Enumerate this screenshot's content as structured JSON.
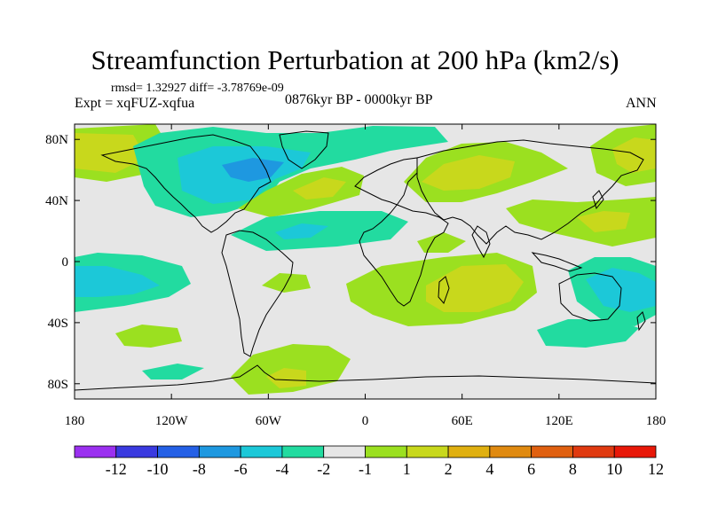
{
  "title": "Streamfunction Perturbation at 200 hPa (km2/s)",
  "stats": "rmsd= 1.32927 diff= -3.78769e-09",
  "experiment": "Expt = xqFUZ-xqfua",
  "period": "0876kyr BP - 0000kyr BP",
  "season": "ANN",
  "map": {
    "projection": "cylindrical-equidistant",
    "lon_range": [
      -180,
      180
    ],
    "lat_range": [
      -90,
      90
    ],
    "x_ticks": [
      {
        "lon": -180,
        "label": "180"
      },
      {
        "lon": -120,
        "label": "120W"
      },
      {
        "lon": -60,
        "label": "60W"
      },
      {
        "lon": 0,
        "label": "0"
      },
      {
        "lon": 60,
        "label": "60E"
      },
      {
        "lon": 120,
        "label": "120E"
      },
      {
        "lon": 180,
        "label": "180"
      }
    ],
    "y_ticks": [
      {
        "lat": 80,
        "label": "80N"
      },
      {
        "lat": 40,
        "label": "40N"
      },
      {
        "lat": 0,
        "label": "0"
      },
      {
        "lat": -40,
        "label": "40S"
      },
      {
        "lat": -80,
        "label": "80S"
      }
    ],
    "background_color": "#e6e6e6",
    "coastline_color": "#000000"
  },
  "colorbar": {
    "colors": [
      "#9b30f0",
      "#3a3ae0",
      "#2460e6",
      "#1e98e0",
      "#1cc8d8",
      "#22dba0",
      "#e6e6e6",
      "#9be020",
      "#c8d81c",
      "#e0b010",
      "#e08a10",
      "#e06010",
      "#e03a10",
      "#e81808"
    ],
    "labels": [
      "-12",
      "-10",
      "-8",
      "-6",
      "-4",
      "-2",
      "-1",
      "1",
      "2",
      "4",
      "6",
      "8",
      "10",
      "12"
    ]
  },
  "anomalies": [
    {
      "id": "nw-atlantic-low",
      "lon": -75,
      "lat": 58,
      "value": -5
    },
    {
      "id": "arctic-low",
      "lon": -20,
      "lat": 80,
      "value": -2
    },
    {
      "id": "n-pacific-high",
      "lon": -155,
      "lat": 65,
      "value": 4
    },
    {
      "id": "n-atlantic-high",
      "lon": -40,
      "lat": 40,
      "value": 3
    },
    {
      "id": "eurasia-high",
      "lon": 50,
      "lat": 55,
      "value": 3
    },
    {
      "id": "w-pacific-high",
      "lon": 160,
      "lat": 25,
      "value": 4
    },
    {
      "id": "tropical-atlantic-low",
      "lon": -45,
      "lat": 12,
      "value": -2
    },
    {
      "id": "s-pacific-low",
      "lon": -170,
      "lat": -12,
      "value": -3
    },
    {
      "id": "australia-low",
      "lon": 150,
      "lat": -25,
      "value": -3
    },
    {
      "id": "s-indian-high",
      "lon": 60,
      "lat": -20,
      "value": 3
    },
    {
      "id": "s-atlantic-high",
      "lon": -50,
      "lat": -70,
      "value": 3
    },
    {
      "id": "s-ocean-low",
      "lon": 80,
      "lat": -55,
      "value": -2
    }
  ]
}
